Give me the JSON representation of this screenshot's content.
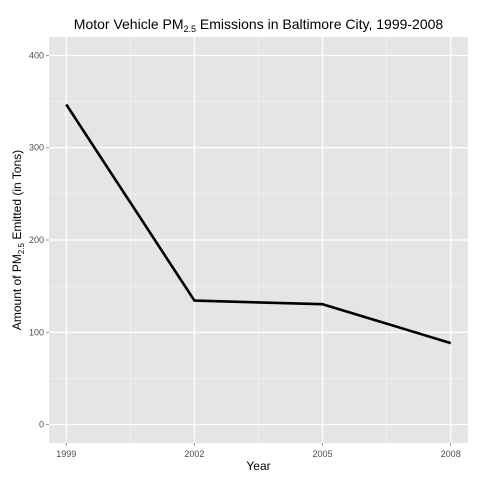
{
  "chart_data": {
    "type": "line",
    "title": {
      "prefix": "Motor Vehicle PM",
      "subscript": "2.5",
      "suffix": " Emissions in Baltimore City, 1999-2008"
    },
    "xlabel": "Year",
    "ylabel": {
      "prefix": "Amount of PM",
      "subscript": "2.5",
      "suffix": " Emitted (in Tons)"
    },
    "x": [
      1999,
      2002,
      2005,
      2008
    ],
    "x_tick_labels": [
      "1999",
      "2002",
      "2005",
      "2008"
    ],
    "y_ticks": [
      0,
      100,
      200,
      300,
      400
    ],
    "y_tick_labels": [
      "0",
      "100",
      "200",
      "300",
      "400"
    ],
    "series": [
      {
        "values": [
          346.8,
          134.3,
          130.4,
          88.3
        ]
      }
    ],
    "xlim": [
      1999,
      2008
    ],
    "ylim": [
      0,
      400
    ],
    "grid": true,
    "legend": "none",
    "colors": {
      "panel_background": "#e5e5e5",
      "grid_major": "#ffffff",
      "grid_minor": "#f2f2f2",
      "line": "#000000",
      "tick_text": "#4d4d4d"
    }
  }
}
